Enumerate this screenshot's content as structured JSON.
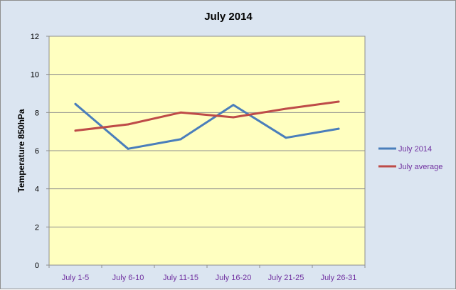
{
  "chart_data": {
    "type": "line",
    "title": "July 2014",
    "xlabel": "",
    "ylabel": "Temperature 850hPa",
    "categories": [
      "July 1-5",
      "July 6-10",
      "July 11-15",
      "July 16-20",
      "July 21-25",
      "July 26-31"
    ],
    "ylim": [
      0,
      12
    ],
    "yticks": [
      "0",
      "2",
      "4",
      "6",
      "8",
      "10",
      "12"
    ],
    "grid": true,
    "legend_position": "right",
    "plot_background": "#ffffc0",
    "chart_background": "#dbe5f1",
    "series": [
      {
        "name": "July 2014",
        "color": "#4a7ebb",
        "values": [
          8.45,
          6.1,
          6.6,
          8.4,
          6.68,
          7.15
        ]
      },
      {
        "name": "July average",
        "color": "#be4b48",
        "values": [
          7.05,
          7.38,
          8.0,
          7.75,
          8.2,
          8.57
        ]
      }
    ]
  }
}
